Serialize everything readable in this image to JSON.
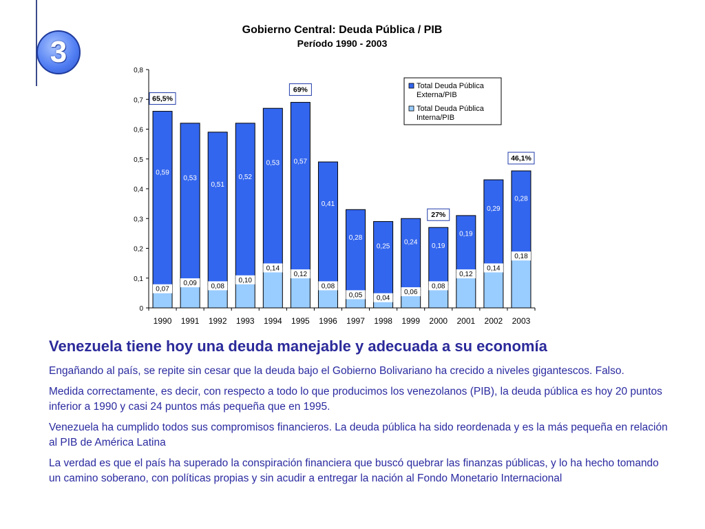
{
  "slide": {
    "badge_number": "3",
    "headline": "Venezuela tiene hoy una deuda manejable y adecuada a su economía",
    "paragraphs": [
      "Engañando al país, se repite sin cesar que la deuda bajo el Gobierno Bolivariano ha crecido a niveles gigantescos. Falso.",
      "Medida correctamente, es decir, con respecto a todo lo que producimos los venezolanos (PIB), la deuda pública es hoy 20 puntos inferior a 1990 y casi 24 puntos más pequeña que en 1995.",
      "Venezuela ha cumplido todos sus compromisos financieros. La deuda pública ha sido reordenada y es la más pequeña en relación al PIB de América Latina",
      "La verdad es que el país ha superado la conspiración financiera que buscó quebrar las finanzas públicas, y lo ha hecho tomando un camino soberano, con políticas propias y sin acudir a entregar la nación al Fondo Monetario Internacional"
    ]
  },
  "chart_data": {
    "type": "bar",
    "stacked": true,
    "title": "Gobierno Central: Deuda Pública / PIB",
    "subtitle": "Período 1990 - 2003",
    "categories": [
      "1990",
      "1991",
      "1992",
      "1993",
      "1994",
      "1995",
      "1996",
      "1997",
      "1998",
      "1999",
      "2000",
      "2001",
      "2002",
      "2003"
    ],
    "series": [
      {
        "name": "Total Deuda Pública Interna/PIB",
        "color": "#99ccff",
        "values": [
          0.07,
          0.09,
          0.08,
          0.1,
          0.14,
          0.12,
          0.08,
          0.05,
          0.04,
          0.06,
          0.08,
          0.12,
          0.14,
          0.18
        ],
        "labels": [
          "0,07",
          "0,09",
          "0,08",
          "0,10",
          "0,14",
          "0,12",
          "0,08",
          "0,05",
          "0,04",
          "0,06",
          "0,08",
          "0,12",
          "0,14",
          "0,18"
        ]
      },
      {
        "name": "Total Deuda Pública Externa/PIB",
        "color": "#3366ee",
        "values": [
          0.59,
          0.53,
          0.51,
          0.52,
          0.53,
          0.57,
          0.41,
          0.28,
          0.25,
          0.24,
          0.19,
          0.19,
          0.29,
          0.28
        ],
        "labels": [
          "0,59",
          "0,53",
          "0,51",
          "0,52",
          "0,53",
          "0,57",
          "0,41",
          "0,28",
          "0,25",
          "0,24",
          "0,19",
          "0,19",
          "0,29",
          "0,28"
        ]
      }
    ],
    "legend_entries": [
      {
        "name": "Total Deuda Pública Externa/PIB",
        "color": "#3366ee"
      },
      {
        "name": "Total Deuda Pública Interna/PIB",
        "color": "#99ccff"
      }
    ],
    "legend_position": "top-right",
    "ylim": [
      0,
      0.8
    ],
    "yticks": [
      0,
      0.1,
      0.2,
      0.3,
      0.4,
      0.5,
      0.6,
      0.7,
      0.8
    ],
    "ytick_labels": [
      "0",
      "0,1",
      "0,2",
      "0,3",
      "0,4",
      "0,5",
      "0,6",
      "0,7",
      "0,8"
    ],
    "grid": false,
    "callouts": [
      {
        "category": "1990",
        "text": "65,5%"
      },
      {
        "category": "1995",
        "text": "69%"
      },
      {
        "category": "2000",
        "text": "27%"
      },
      {
        "category": "2003",
        "text": "46,1%"
      }
    ]
  }
}
